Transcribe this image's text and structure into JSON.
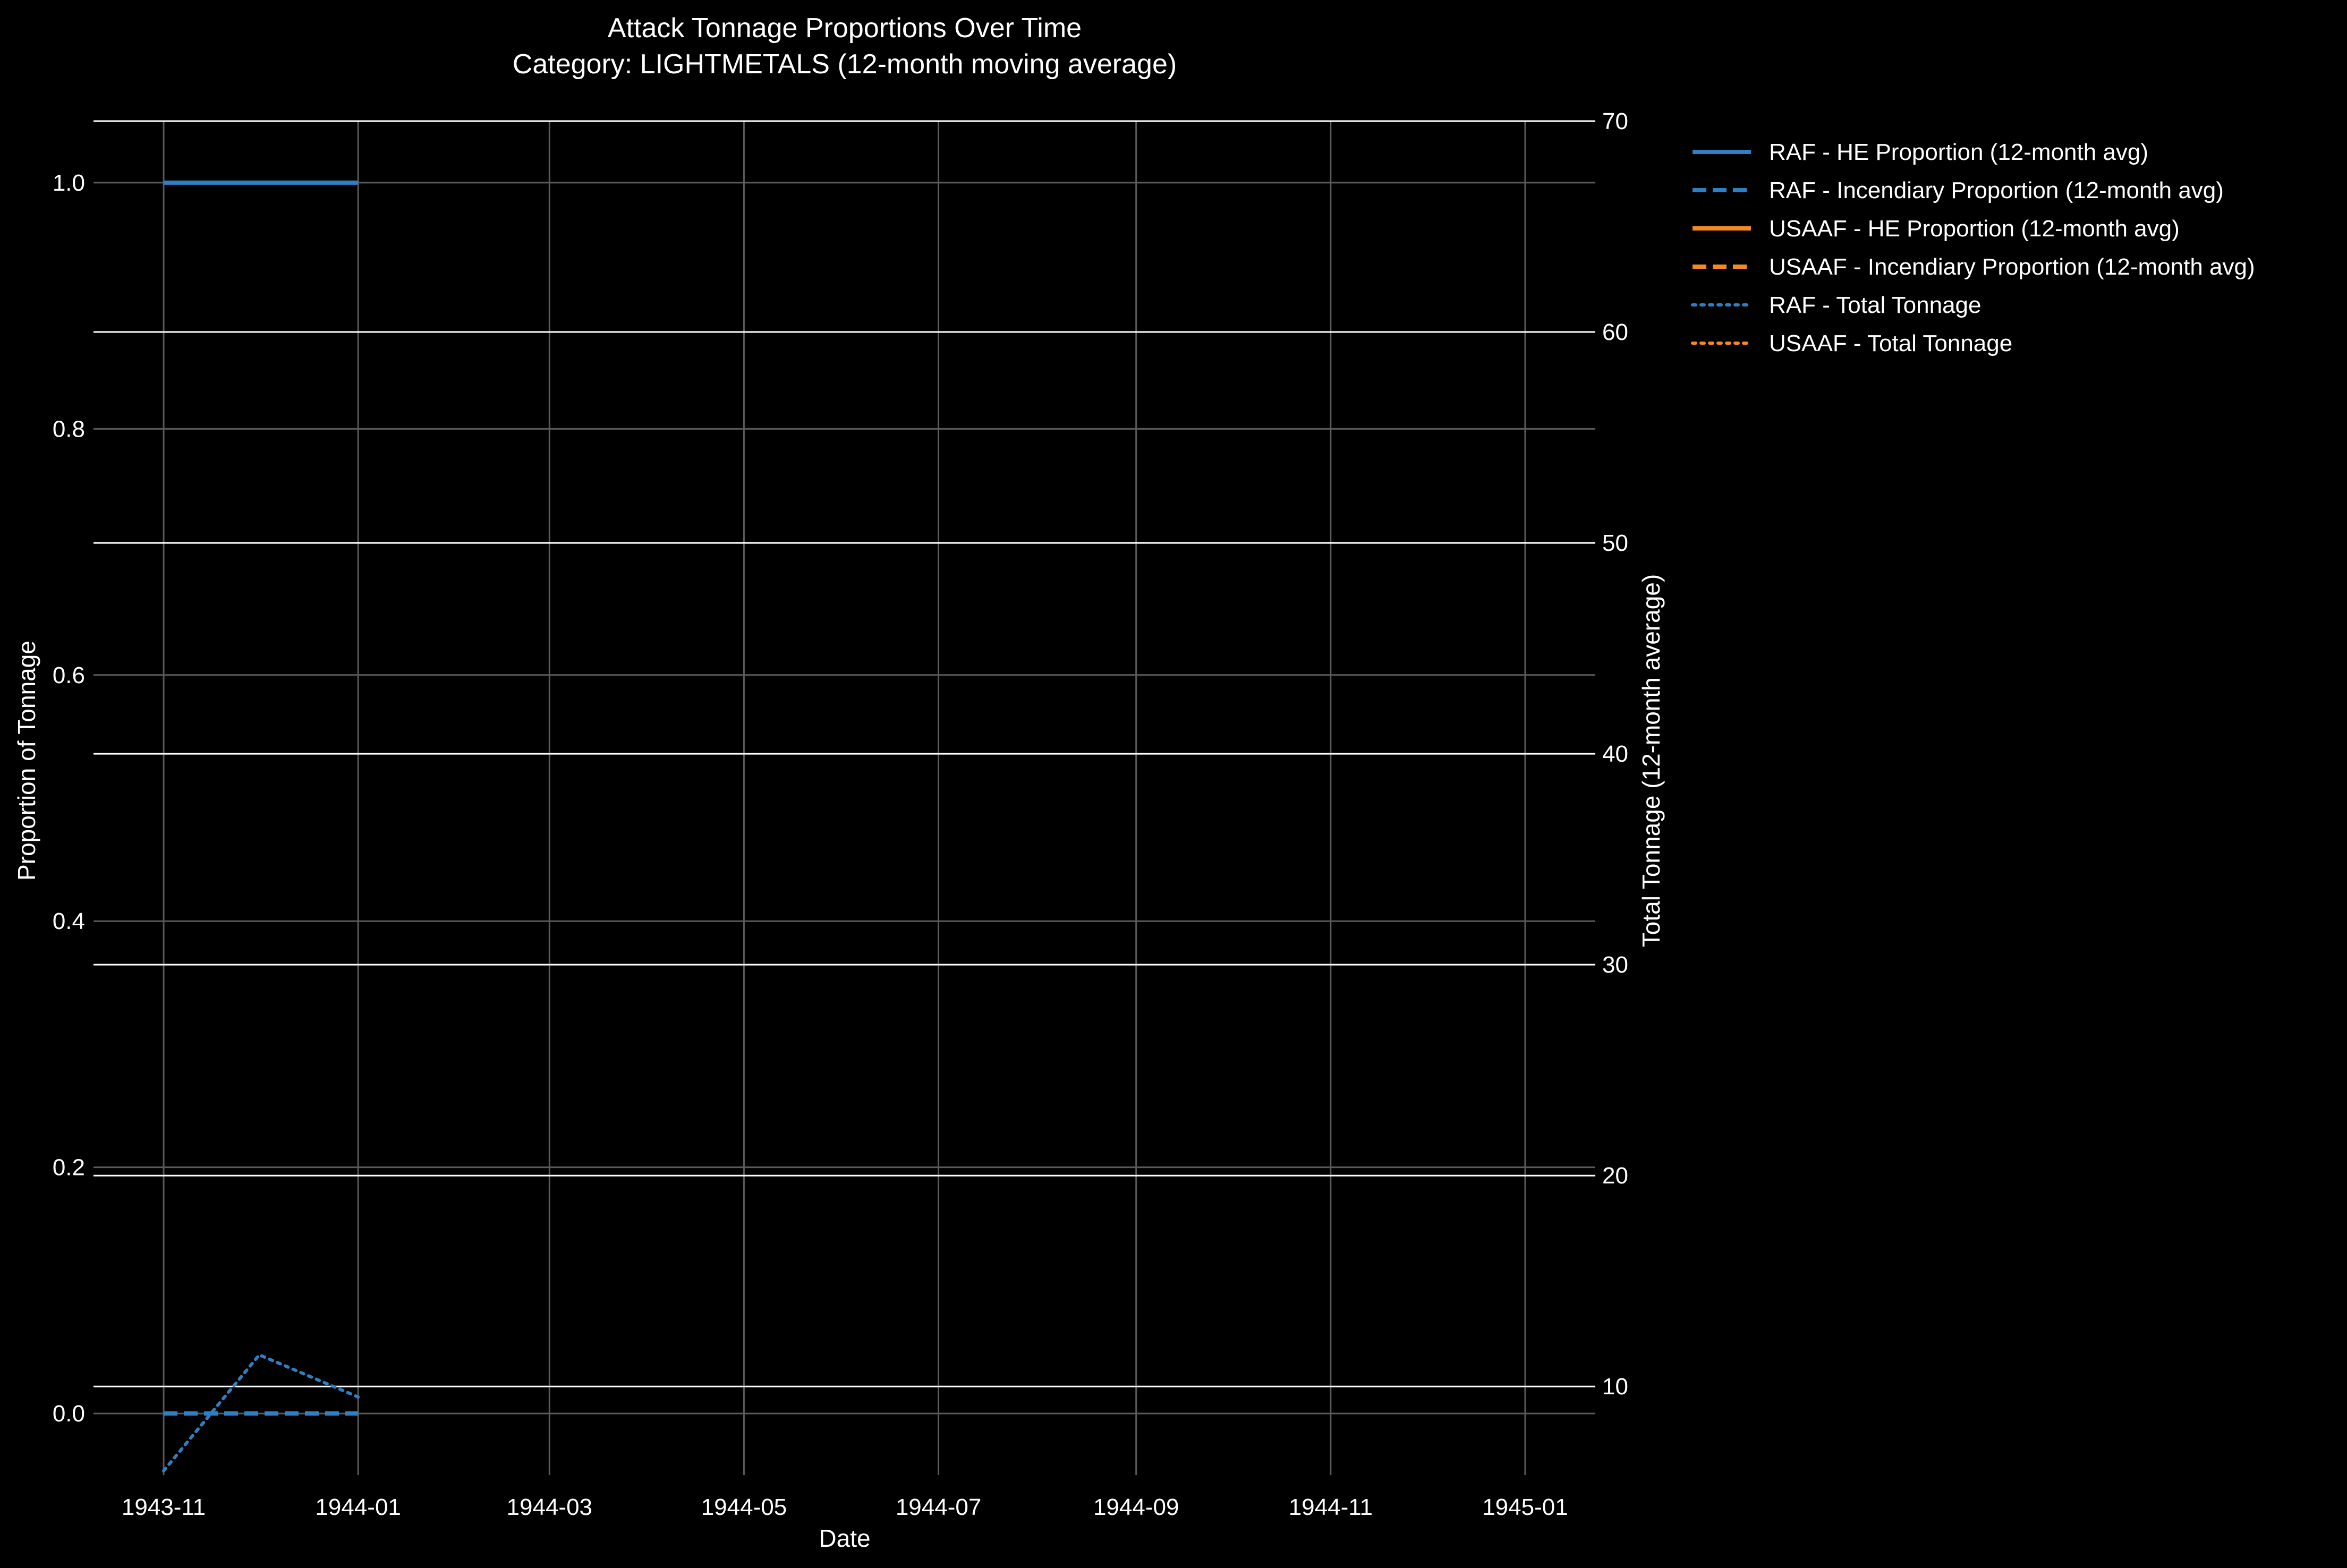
{
  "colors": {
    "background": "#000000",
    "text": "#ffffff",
    "grid_primary": "#5a5a5a",
    "grid_secondary": "#ffffff",
    "raf": "#2f7fc4",
    "usaaf": "#f08a24"
  },
  "chart_data": {
    "type": "line",
    "title": "Attack Tonnage Proportions Over Time",
    "subtitle": "Category: LIGHTMETALS (12-month moving average)",
    "xlabel": "Date",
    "ylabel": "Proportion of Tonnage",
    "y2label": "Total Tonnage (12-month average)",
    "x_ticks": [
      "1943-11",
      "1944-01",
      "1944-03",
      "1944-05",
      "1944-07",
      "1944-09",
      "1944-11",
      "1945-01"
    ],
    "x_range": [
      "1943-10-10",
      "1945-01-23"
    ],
    "y_ticks": [
      "0.0",
      "0.2",
      "0.4",
      "0.6",
      "0.8",
      "1.0"
    ],
    "y_range": [
      -0.05,
      1.05
    ],
    "y2_ticks": [
      "10",
      "20",
      "30",
      "40",
      "50",
      "60",
      "70"
    ],
    "y2_range": [
      5.8,
      70
    ],
    "grid": true,
    "legend_position": "outside-right-top",
    "series": [
      {
        "name": "RAF - HE Proportion (12-month avg)",
        "axis": "left",
        "style": "solid",
        "color": "#2f7fc4",
        "x": [
          "1943-11-01",
          "1943-12-01",
          "1944-01-01"
        ],
        "y": [
          1.0,
          1.0,
          1.0
        ]
      },
      {
        "name": "RAF - Incendiary Proportion (12-month avg)",
        "axis": "left",
        "style": "dashed",
        "color": "#2f7fc4",
        "x": [
          "1943-11-01",
          "1943-12-01",
          "1944-01-01"
        ],
        "y": [
          0.0,
          0.0,
          0.0
        ]
      },
      {
        "name": "USAAF - HE Proportion (12-month avg)",
        "axis": "left",
        "style": "solid",
        "color": "#f08a24",
        "x": [],
        "y": []
      },
      {
        "name": "USAAF - Incendiary Proportion (12-month avg)",
        "axis": "left",
        "style": "dashed",
        "color": "#f08a24",
        "x": [],
        "y": []
      },
      {
        "name": "RAF - Total Tonnage",
        "axis": "right",
        "style": "dotted",
        "color": "#2f7fc4",
        "x": [
          "1943-11-01",
          "1943-12-01",
          "1944-01-01"
        ],
        "y": [
          6.0,
          11.5,
          9.5
        ]
      },
      {
        "name": "USAAF - Total Tonnage",
        "axis": "right",
        "style": "dotted",
        "color": "#f08a24",
        "x": [],
        "y": []
      }
    ]
  }
}
